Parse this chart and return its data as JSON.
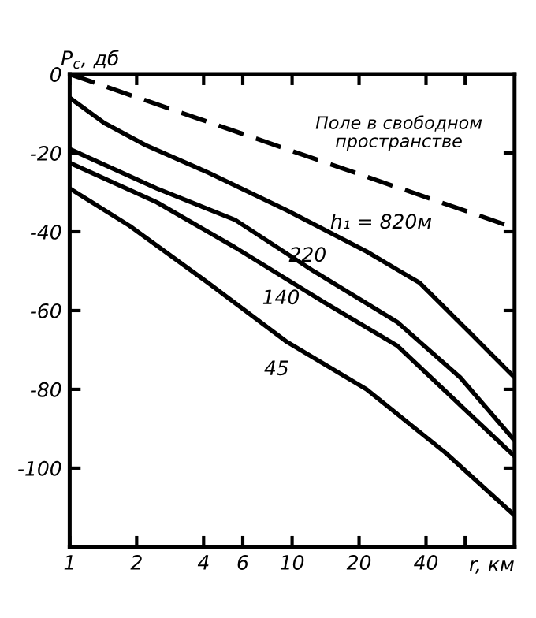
{
  "chart_data": {
    "type": "line",
    "ylabel": "P$_{c}$, дб",
    "xlabel": "r, км",
    "log": "x",
    "xlim": [
      1,
      100
    ],
    "ylim": [
      -120,
      0
    ],
    "xticks": [
      1,
      2,
      4,
      6,
      10,
      20,
      40,
      {
        "value": 60,
        "label": null
      }
    ],
    "yticks": [
      0,
      -20,
      -40,
      -60,
      -80,
      -100
    ],
    "grid": false,
    "legend": false,
    "marker": "none",
    "series": [
      {
        "name": "Поле в свободном\nпространстве",
        "color": "#000000",
        "line_style": "dashed",
        "x": [
          1,
          100
        ],
        "values": [
          0,
          -39
        ]
      },
      {
        "name": "h₁ = 820м",
        "color": "#000000",
        "line_style": "solid",
        "x": [
          1,
          1.43,
          2.19,
          4.2,
          9.5,
          21.6,
          37.5,
          64,
          100
        ],
        "values": [
          -6,
          -12.4,
          -18,
          -25,
          -34.6,
          -45,
          -53,
          -66,
          -77
        ]
      },
      {
        "name": "220",
        "color": "#000000",
        "line_style": "solid",
        "x": [
          1,
          2.46,
          5.55,
          12.5,
          29.8,
          57,
          100
        ],
        "values": [
          -19,
          -29,
          -37,
          -50,
          -63,
          -77,
          -93
        ]
      },
      {
        "name": "140",
        "color": "#000000",
        "line_style": "solid",
        "x": [
          1,
          2.46,
          5.55,
          14,
          29.8,
          57,
          100
        ],
        "values": [
          -22.5,
          -32.5,
          -44,
          -58,
          -69,
          -84,
          -97
        ]
      },
      {
        "name": "45",
        "color": "#000000",
        "line_style": "solid",
        "x": [
          1,
          1.86,
          4.2,
          9.5,
          21.6,
          48.7,
          100
        ],
        "values": [
          -29,
          -38.5,
          -53,
          -68,
          -80,
          -96,
          -112
        ]
      }
    ]
  }
}
